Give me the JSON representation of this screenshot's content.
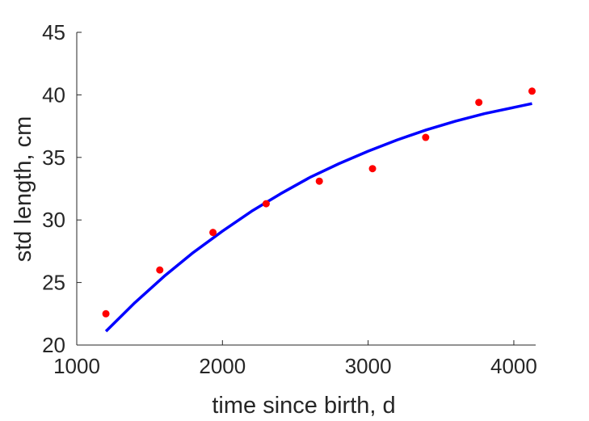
{
  "chart_data": {
    "type": "scatter",
    "title": "",
    "xlabel": "time since birth, d",
    "ylabel": "std length, cm",
    "xlim": [
      1000,
      4150
    ],
    "ylim": [
      20,
      45
    ],
    "xticks": [
      1000,
      2000,
      3000,
      4000
    ],
    "yticks": [
      20,
      25,
      30,
      35,
      40,
      45
    ],
    "grid": false,
    "series": [
      {
        "kind": "points",
        "color": "#ff0000",
        "x": [
          1200,
          1570,
          1935,
          2300,
          2665,
          3030,
          3395,
          3760,
          4125
        ],
        "y": [
          22.5,
          26.0,
          29.0,
          31.3,
          33.1,
          34.1,
          36.6,
          39.4,
          40.3
        ]
      },
      {
        "kind": "fit",
        "color": "#0000ff",
        "x": [
          1200,
          1400,
          1600,
          1800,
          2000,
          2200,
          2400,
          2600,
          2800,
          3000,
          3200,
          3400,
          3600,
          3800,
          4000,
          4125
        ],
        "y": [
          21.1,
          23.4,
          25.5,
          27.4,
          29.1,
          30.7,
          32.1,
          33.4,
          34.5,
          35.5,
          36.4,
          37.2,
          37.9,
          38.5,
          39.0,
          39.3
        ]
      }
    ]
  }
}
